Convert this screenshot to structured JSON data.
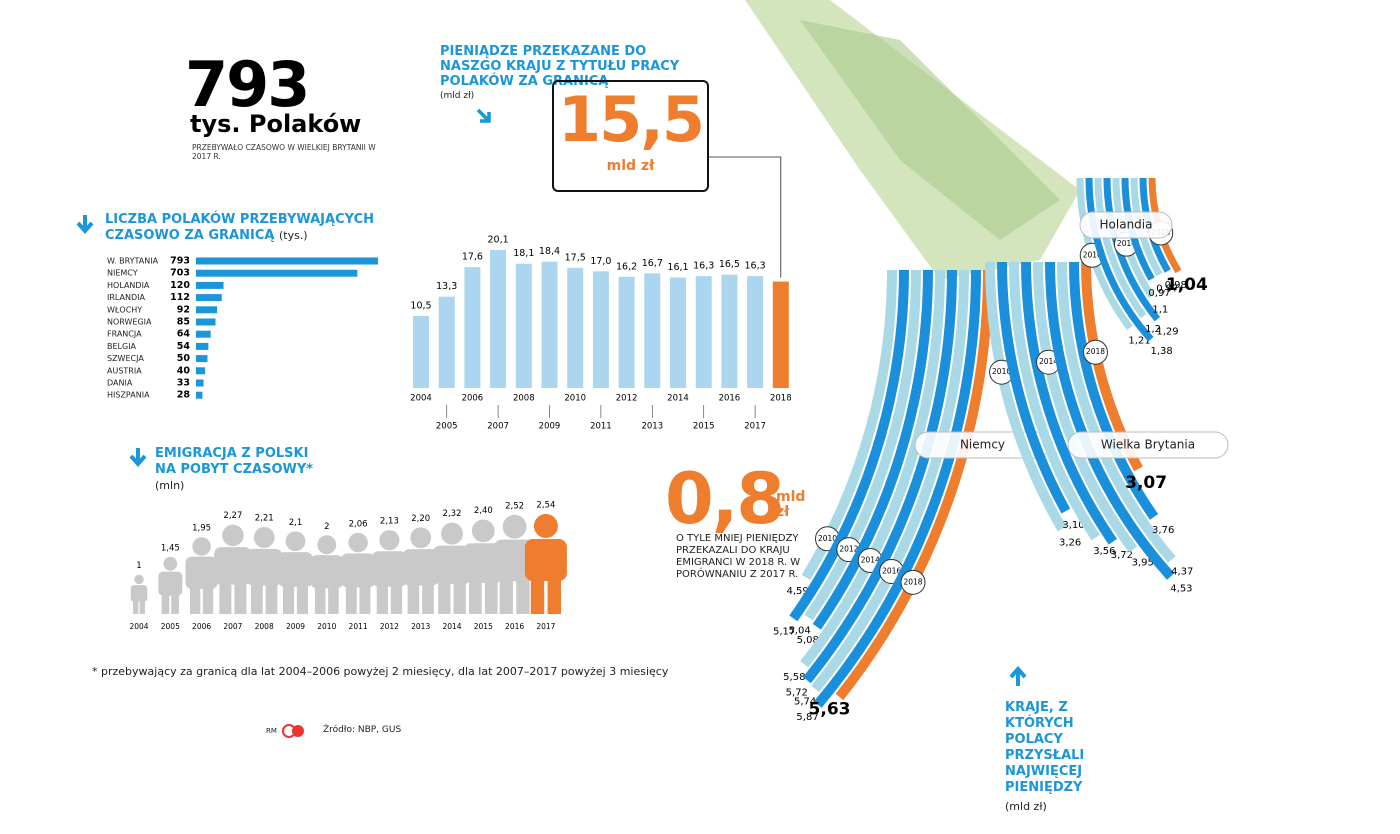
{
  "headline": {
    "number": "793",
    "unit": "tys. Polaków",
    "note": "PRZEBYWAŁO CZASOWO W WIELKIEJ BRYTANII W 2017 R."
  },
  "remittance_callout": {
    "title": "PIENIĄDZE PRZEKAZANE  DO NASZGO KRAJU Z TYTUŁU PRACY POLAKÓW ZA GRANICĄ",
    "unit_note": "(mld zł)",
    "number": "15,5",
    "unit": "mld zł"
  },
  "drop_callout": {
    "number": "0,8",
    "unit": "mld zł",
    "text": "O TYLE MNIEJ PIENIĘDZY PRZEKAZALI DO KRAJU EMIGRANCI W 2018 R. W PORÓWNANIU Z 2017 R."
  },
  "countries_title": "KRAJE, Z KTÓRYCH POLACY PRZYSŁALI NAJWIĘCEJ PIENIĘDZY",
  "countries_unit": "(mld zł)",
  "footnote": "* przebywający za granicą dla lat 2004–2006 powyżej 2 miesięcy, dla lat 2007–2017 powyżej 3 miesięcy",
  "credit": "RM",
  "source": "Źródło: NBP, GUS",
  "chart_data": [
    {
      "type": "hbar",
      "title": "LICZBA POLAKÓW PRZEBYWAJĄCYCH CZASOWO ZA GRANICĄ",
      "unit": "(tys.)",
      "categories": [
        "W. BRYTANIA",
        "NIEMCY",
        "HOLANDIA",
        "IRLANDIA",
        "WŁOCHY",
        "NORWEGIA",
        "FRANCJA",
        "BELGIA",
        "SZWECJA",
        "AUSTRIA",
        "DANIA",
        "HISZPANIA"
      ],
      "values": [
        793,
        703,
        120,
        112,
        92,
        85,
        64,
        54,
        50,
        40,
        33,
        28
      ],
      "color": "#1a96d9"
    },
    {
      "type": "bar",
      "categories": [
        "2004",
        "2005",
        "2006",
        "2007",
        "2008",
        "2009",
        "2010",
        "2011",
        "2012",
        "2013",
        "2014",
        "2015",
        "2016",
        "2017",
        "2018"
      ],
      "values": [
        10.5,
        13.3,
        17.6,
        20.1,
        18.1,
        18.4,
        17.5,
        17.0,
        16.2,
        16.7,
        16.1,
        16.3,
        16.5,
        16.3,
        15.5
      ],
      "value_labels": [
        "10,5",
        "13,3",
        "17,6",
        "20,1",
        "18,1",
        "18,4",
        "17,5",
        "17,0",
        "16,2",
        "16,7",
        "16,1",
        "16,3",
        "16,5",
        "16,3",
        null
      ],
      "colors": [
        "#acd6ef",
        "#acd6ef",
        "#acd6ef",
        "#acd6ef",
        "#acd6ef",
        "#acd6ef",
        "#acd6ef",
        "#acd6ef",
        "#acd6ef",
        "#acd6ef",
        "#acd6ef",
        "#acd6ef",
        "#acd6ef",
        "#acd6ef",
        "#ef7d2e"
      ]
    },
    {
      "type": "pictogram",
      "title": "EMIGRACJA Z POLSKI NA POBYT CZASOWY*",
      "unit": "(mln)",
      "categories": [
        "2004",
        "2005",
        "2006",
        "2007",
        "2008",
        "2009",
        "2010",
        "2011",
        "2012",
        "2013",
        "2014",
        "2015",
        "2016",
        "2017"
      ],
      "values": [
        1,
        1.45,
        1.95,
        2.27,
        2.21,
        2.1,
        2,
        2.06,
        2.13,
        2.2,
        2.32,
        2.4,
        2.52,
        2.54
      ],
      "value_labels": [
        "1",
        "1,45",
        "1,95",
        "2,27",
        "2,21",
        "2,1",
        "2",
        "2,06",
        "2,13",
        "2,20",
        "2,32",
        "2,40",
        "2,52",
        "2,54"
      ],
      "colors": [
        "#c9c9c9",
        "#c9c9c9",
        "#c9c9c9",
        "#c9c9c9",
        "#c9c9c9",
        "#c9c9c9",
        "#c9c9c9",
        "#c9c9c9",
        "#c9c9c9",
        "#c9c9c9",
        "#c9c9c9",
        "#c9c9c9",
        "#c9c9c9",
        "#ef7d2e"
      ]
    },
    {
      "type": "arc",
      "title": "Niemcy",
      "categories": [
        "2010",
        null,
        "2012",
        null,
        "2014",
        null,
        "2016",
        null,
        "2018"
      ],
      "values": [
        4.59,
        5.17,
        5.04,
        5.08,
        5.58,
        5.72,
        5.74,
        5.87,
        5.63
      ],
      "value_labels": [
        "4,59",
        "5,17",
        "5,04",
        "5,08",
        "5,58",
        "5,72",
        "5,74",
        "5,87",
        "5,63"
      ],
      "colors": [
        "#a9d8e6",
        "#1a8fdc",
        "#a9d8e6",
        "#1a8fdc",
        "#a9d8e6",
        "#1a8fdc",
        "#a9d8e6",
        "#1a8fdc",
        "#ef7d2e"
      ]
    },
    {
      "type": "arc",
      "title": "Wielka Brytania",
      "categories": [
        "2010",
        null,
        null,
        null,
        "2014",
        null,
        null,
        null,
        "2018"
      ],
      "values": [
        3.26,
        3.1,
        3.56,
        3.72,
        3.95,
        4.53,
        4.37,
        3.76,
        3.07
      ],
      "value_labels": [
        "3,26",
        "3,10",
        "3,56",
        "3,72",
        "3,95",
        "4,53",
        "4,37",
        "3,76",
        "3,07"
      ],
      "colors": [
        "#a9d8e6",
        "#1a8fdc",
        "#a9d8e6",
        "#1a8fdc",
        "#a9d8e6",
        "#1a8fdc",
        "#a9d8e6",
        "#1a8fdc",
        "#ef7d2e"
      ]
    },
    {
      "type": "arc",
      "title": "Holandia",
      "categories": [
        "2010",
        null,
        null,
        null,
        "2014",
        null,
        null,
        null,
        "2018"
      ],
      "values": [
        1.21,
        1.38,
        1.2,
        1.29,
        1.1,
        0.97,
        0.97,
        0.98,
        1.04
      ],
      "value_labels": [
        "1,21",
        "1,38",
        "1,2",
        "1,29",
        "1,1",
        "0,97",
        "0,97",
        "0,98",
        "1,04"
      ],
      "colors": [
        "#a9d8e6",
        "#1a8fdc",
        "#a9d8e6",
        "#1a8fdc",
        "#a9d8e6",
        "#1a8fdc",
        "#a9d8e6",
        "#1a8fdc",
        "#ef7d2e"
      ]
    }
  ]
}
